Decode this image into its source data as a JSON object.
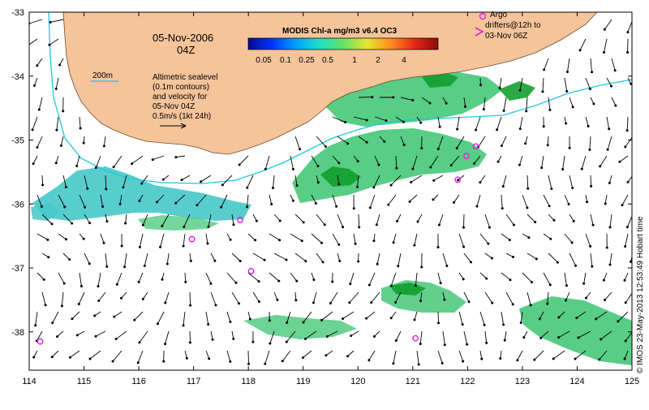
{
  "map": {
    "date": "05-Nov-2006",
    "time": "04Z",
    "colorbar": {
      "title": "MODIS Chl-a mg/m3 v6.4 OC3",
      "ticks": [
        "0.05",
        "0.1",
        "0.25",
        "0.5",
        "1",
        "2",
        "4"
      ],
      "colors": [
        "#0a0a8c",
        "#0033ff",
        "#00a0ff",
        "#1ee0c8",
        "#66e066",
        "#e6e632",
        "#ff8c1e",
        "#e62814",
        "#8c0a0a"
      ]
    },
    "isobath_label": "200m",
    "altimetry_note": [
      "Altimetric sealevel",
      "(0.1m contours)",
      "and velocity for",
      "05-Nov 04Z",
      "0.5m/s (1kt 24h)"
    ],
    "argo_legend": [
      "Argo",
      "drifters@12h to",
      "03-Nov 06Z"
    ],
    "credit": "© IMOS 23-May-2013 12:53:49 Hobart time",
    "x_axis": {
      "range": [
        114,
        125
      ],
      "ticks": [
        "114",
        "115",
        "116",
        "117",
        "118",
        "119",
        "120",
        "121",
        "122",
        "123",
        "124",
        "125"
      ]
    },
    "y_axis": {
      "range": [
        -38.6,
        -33
      ],
      "ticks": [
        "-33",
        "-34",
        "-35",
        "-36",
        "-37",
        "-38"
      ]
    },
    "argo_floats": [
      {
        "lon": 114.2,
        "lat": -38.15
      },
      {
        "lon": 116.97,
        "lat": -36.55
      },
      {
        "lon": 117.85,
        "lat": -36.25
      },
      {
        "lon": 118.05,
        "lat": -37.05
      },
      {
        "lon": 121.05,
        "lat": -38.1
      },
      {
        "lon": 121.82,
        "lat": -35.62
      },
      {
        "lon": 121.98,
        "lat": -35.25
      },
      {
        "lon": 122.15,
        "lat": -35.1
      }
    ],
    "colors": {
      "land": "#f5c49a",
      "coast_line": "#6a4a2a",
      "isobath": "#20c8e0",
      "arrow": "#000000",
      "argo": "#e020e0",
      "chl_mid": "#46c878",
      "chl_low": "#46c8c8",
      "chl_high": "#14a030"
    }
  }
}
